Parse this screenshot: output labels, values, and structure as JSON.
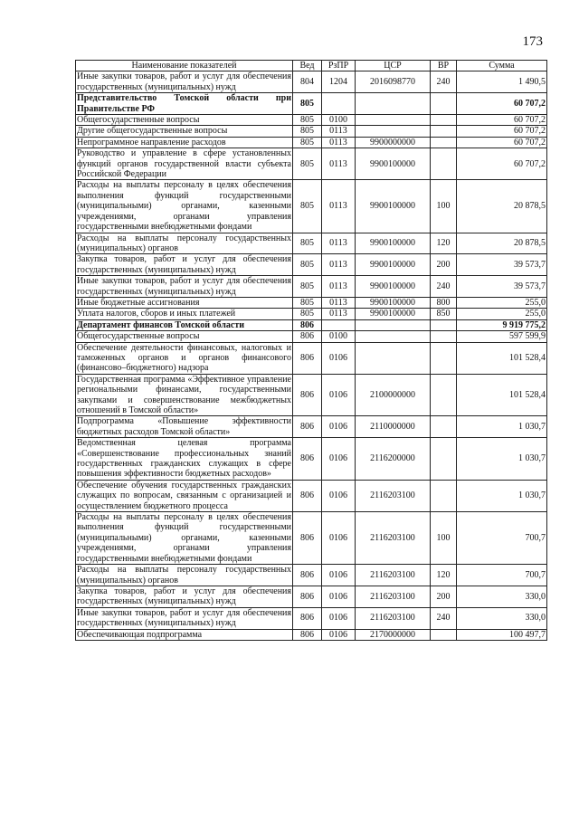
{
  "page_number": "173",
  "table": {
    "headers": [
      "Наименование показателей",
      "Вед",
      "РзПР",
      "ЦСР",
      "ВР",
      "Сумма"
    ],
    "rows": [
      {
        "name": "Иные закупки товаров, работ и услуг для обеспечения государственных (муниципальных) нужд",
        "ved": "804",
        "rzpr": "1204",
        "csr": "2016098770",
        "vr": "240",
        "sum": "1 490,5",
        "bold": false
      },
      {
        "name": "Представительство Томской области при Правительстве РФ",
        "ved": "805",
        "rzpr": "",
        "csr": "",
        "vr": "",
        "sum": "60 707,2",
        "bold": true
      },
      {
        "name": "Общегосударственные вопросы",
        "ved": "805",
        "rzpr": "0100",
        "csr": "",
        "vr": "",
        "sum": "60 707,2",
        "bold": false
      },
      {
        "name": "Другие общегосударственные вопросы",
        "ved": "805",
        "rzpr": "0113",
        "csr": "",
        "vr": "",
        "sum": "60 707,2",
        "bold": false
      },
      {
        "name": "Непрограммное направление расходов",
        "ved": "805",
        "rzpr": "0113",
        "csr": "9900000000",
        "vr": "",
        "sum": "60 707,2",
        "bold": false
      },
      {
        "name": "Руководство и управление в сфере установленных функций органов государственной власти субъекта Российской Федерации",
        "ved": "805",
        "rzpr": "0113",
        "csr": "9900100000",
        "vr": "",
        "sum": "60 707,2",
        "bold": false
      },
      {
        "name": "Расходы на выплаты персоналу в целях обеспечения выполнения функций государственными (муниципальными) органами, казенными учреждениями, органами управления государственными внебюджетными фондами",
        "ved": "805",
        "rzpr": "0113",
        "csr": "9900100000",
        "vr": "100",
        "sum": "20 878,5",
        "bold": false
      },
      {
        "name": "Расходы на выплаты персоналу государственных (муниципальных) органов",
        "ved": "805",
        "rzpr": "0113",
        "csr": "9900100000",
        "vr": "120",
        "sum": "20 878,5",
        "bold": false
      },
      {
        "name": "Закупка товаров, работ и услуг для обеспечения государственных (муниципальных) нужд",
        "ved": "805",
        "rzpr": "0113",
        "csr": "9900100000",
        "vr": "200",
        "sum": "39 573,7",
        "bold": false
      },
      {
        "name": "Иные закупки товаров, работ и услуг для обеспечения государственных (муниципальных) нужд",
        "ved": "805",
        "rzpr": "0113",
        "csr": "9900100000",
        "vr": "240",
        "sum": "39 573,7",
        "bold": false
      },
      {
        "name": "Иные бюджетные ассигнования",
        "ved": "805",
        "rzpr": "0113",
        "csr": "9900100000",
        "vr": "800",
        "sum": "255,0",
        "bold": false
      },
      {
        "name": "Уплата налогов, сборов и иных платежей",
        "ved": "805",
        "rzpr": "0113",
        "csr": "9900100000",
        "vr": "850",
        "sum": "255,0",
        "bold": false
      },
      {
        "name": "Департамент финансов Томской области",
        "ved": "806",
        "rzpr": "",
        "csr": "",
        "vr": "",
        "sum": "9 919 775,2",
        "bold": true
      },
      {
        "name": "Общегосударственные вопросы",
        "ved": "806",
        "rzpr": "0100",
        "csr": "",
        "vr": "",
        "sum": "597 599,9",
        "bold": false
      },
      {
        "name": "Обеспечение деятельности финансовых, налоговых и таможенных органов и органов финансового (финансово–бюджетного) надзора",
        "ved": "806",
        "rzpr": "0106",
        "csr": "",
        "vr": "",
        "sum": "101 528,4",
        "bold": false
      },
      {
        "name": "Государственная программа «Эффективное управление региональными финансами, государственными закупками и совершенствование межбюджетных отношений в Томской области»",
        "ved": "806",
        "rzpr": "0106",
        "csr": "2100000000",
        "vr": "",
        "sum": "101 528,4",
        "bold": false
      },
      {
        "name": "Подпрограмма «Повышение эффективности бюджетных расходов Томской области»",
        "ved": "806",
        "rzpr": "0106",
        "csr": "2110000000",
        "vr": "",
        "sum": "1 030,7",
        "bold": false
      },
      {
        "name": "Ведомственная целевая программа «Совершенствование профессиональных знаний государственных гражданских служащих в сфере повышения эффективности бюджетных расходов»",
        "ved": "806",
        "rzpr": "0106",
        "csr": "2116200000",
        "vr": "",
        "sum": "1 030,7",
        "bold": false
      },
      {
        "name": "Обеспечение обучения государственных гражданских служащих по вопросам, связанным с организацией и осуществлением бюджетного процесса",
        "ved": "806",
        "rzpr": "0106",
        "csr": "2116203100",
        "vr": "",
        "sum": "1 030,7",
        "bold": false
      },
      {
        "name": "Расходы на выплаты персоналу в целях обеспечения выполнения функций государственными (муниципальными) органами, казенными учреждениями, органами управления государственными внебюджетными фондами",
        "ved": "806",
        "rzpr": "0106",
        "csr": "2116203100",
        "vr": "100",
        "sum": "700,7",
        "bold": false
      },
      {
        "name": "Расходы на выплаты персоналу государственных (муниципальных) органов",
        "ved": "806",
        "rzpr": "0106",
        "csr": "2116203100",
        "vr": "120",
        "sum": "700,7",
        "bold": false
      },
      {
        "name": "Закупка товаров, работ и услуг для обеспечения государственных (муниципальных) нужд",
        "ved": "806",
        "rzpr": "0106",
        "csr": "2116203100",
        "vr": "200",
        "sum": "330,0",
        "bold": false
      },
      {
        "name": "Иные закупки товаров, работ и услуг для обеспечения государственных (муниципальных) нужд",
        "ved": "806",
        "rzpr": "0106",
        "csr": "2116203100",
        "vr": "240",
        "sum": "330,0",
        "bold": false
      },
      {
        "name": "Обеспечивающая подпрограмма",
        "ved": "806",
        "rzpr": "0106",
        "csr": "2170000000",
        "vr": "",
        "sum": "100 497,7",
        "bold": false
      }
    ]
  }
}
